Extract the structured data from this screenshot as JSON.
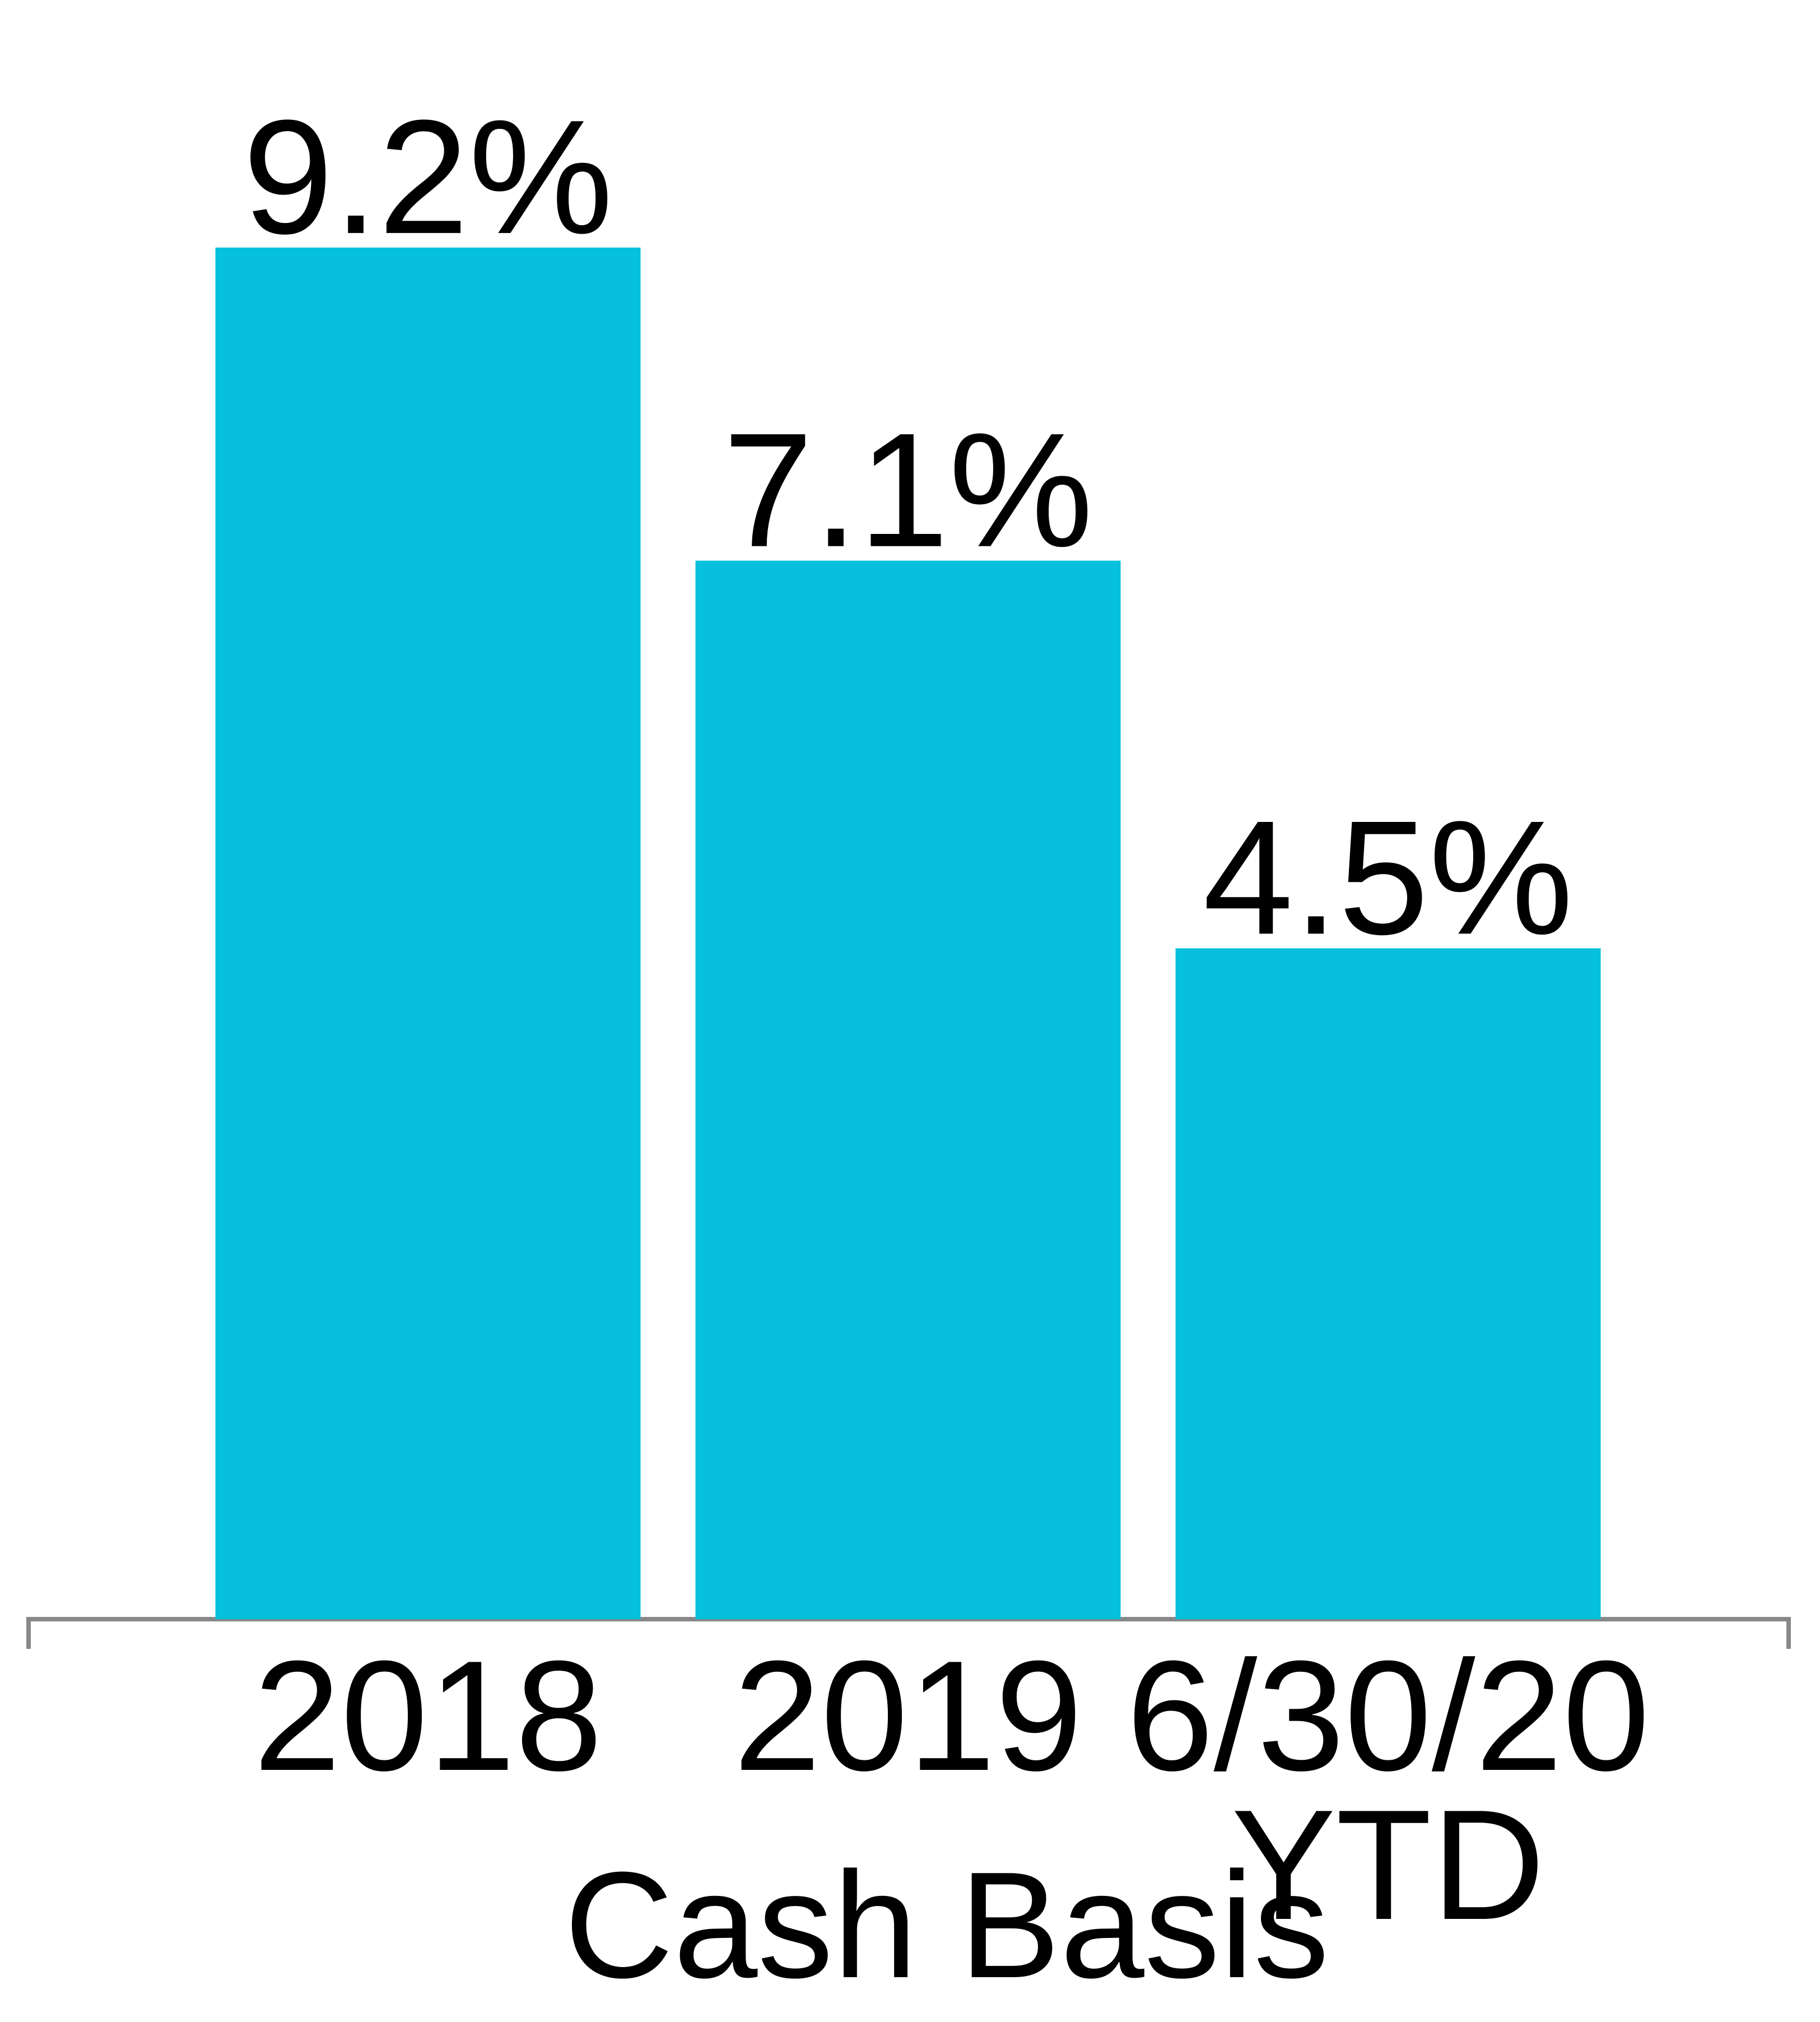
{
  "chart_data": {
    "type": "bar",
    "categories": [
      "2018",
      "2019",
      "6/30/20 YTD"
    ],
    "values": [
      9.2,
      7.1,
      4.5
    ],
    "value_labels": [
      "9.2%",
      "7.1%",
      "4.5%"
    ],
    "color": "#06c0dc",
    "x_label": "Cash Basis",
    "ylim": [
      0,
      10
    ]
  }
}
